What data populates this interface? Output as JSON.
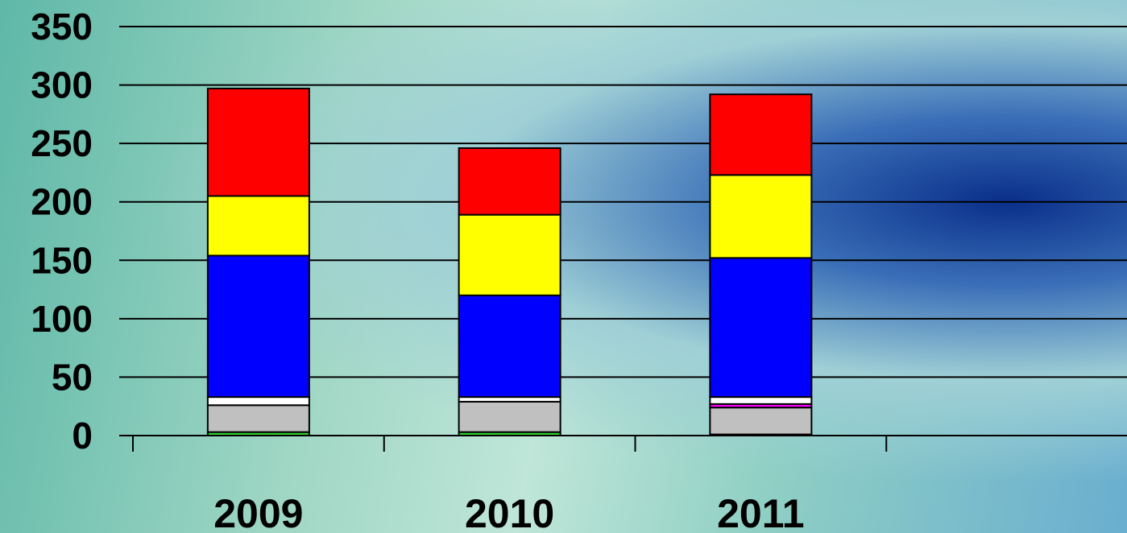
{
  "chart_data": {
    "type": "stacked_bar",
    "categories": [
      "2009",
      "2010",
      "2011",
      null
    ],
    "series": [
      {
        "color": "#33cc33",
        "values": [
          3,
          3,
          1,
          null
        ]
      },
      {
        "color": "#c0c0c0",
        "values": [
          23,
          26,
          23,
          null
        ]
      },
      {
        "color": "#ff00ff",
        "values": [
          0,
          0,
          3,
          null
        ]
      },
      {
        "color": "#ffffff",
        "values": [
          7,
          4,
          6,
          null
        ]
      },
      {
        "color": "#0000ff",
        "values": [
          121,
          87,
          119,
          null
        ]
      },
      {
        "color": "#ffff00",
        "values": [
          51,
          69,
          71,
          null
        ]
      },
      {
        "color": "#ff0000",
        "values": [
          92,
          57,
          69,
          null
        ]
      }
    ],
    "ylim": [
      0,
      350
    ],
    "yticks": [
      0,
      50,
      100,
      150,
      200,
      250,
      300,
      350
    ],
    "grid": true
  }
}
